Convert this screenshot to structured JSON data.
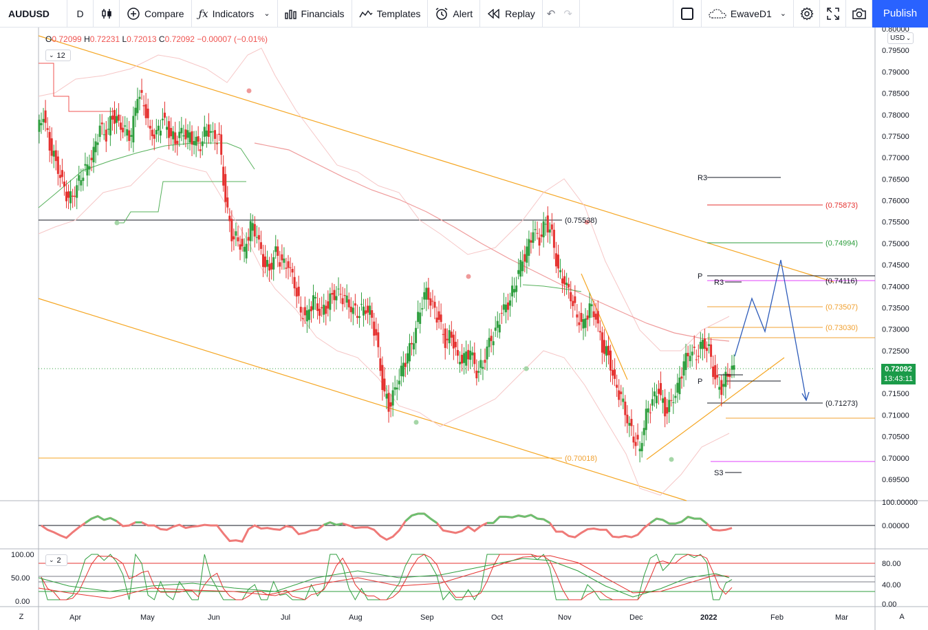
{
  "toolbar": {
    "symbol": "AUDUSD",
    "timeframe": "D",
    "compare": "Compare",
    "indicators": "Indicators",
    "financials": "Financials",
    "templates": "Templates",
    "alert": "Alert",
    "replay": "Replay",
    "layout_name": "EwaveD1",
    "publish": "Publish",
    "icons": {
      "bar_type": "candles-icon",
      "compare": "plus-circle-icon",
      "indicators": "fx-icon",
      "financials": "bars-icon",
      "templates": "templates-icon",
      "alert": "alarm-clock-icon",
      "replay": "rewind-icon",
      "undo": "undo-icon",
      "redo": "redo-icon",
      "layout": "square-icon",
      "cloud": "cloud-icon",
      "settings": "gear-icon",
      "fullscreen": "fullscreen-icon",
      "snapshot": "camera-icon"
    }
  },
  "legend": {
    "o_label": "O",
    "o": "0.72099",
    "h_label": "H",
    "h": "0.72231",
    "l_label": "L",
    "l": "0.72013",
    "c_label": "C",
    "c": "0.72092",
    "change": "−0.00007 (−0.01%)",
    "main_collapse_count": "12",
    "stoch_collapse_count": "2"
  },
  "price_axis": {
    "currency": "USD",
    "labels": [
      "0.80000",
      "0.79500",
      "0.79000",
      "0.78500",
      "0.78000",
      "0.77500",
      "0.77000",
      "0.76500",
      "0.76000",
      "0.75500",
      "0.75000",
      "0.74500",
      "0.74000",
      "0.73500",
      "0.73000",
      "0.72500",
      "0.72000",
      "0.71500",
      "0.71000",
      "0.70500",
      "0.70000",
      "0.69500"
    ],
    "last_price": "0.72092",
    "countdown": "13:43:11",
    "osc1_labels": [
      "100.00000",
      "0.00000"
    ],
    "osc2_labels": [
      "80.00",
      "40.00",
      "0.00"
    ],
    "osc2_left_labels": [
      "100.00",
      "50.00",
      "0.00"
    ]
  },
  "time_axis": {
    "labels": [
      "Apr",
      "May",
      "Jun",
      "Jul",
      "Aug",
      "Sep",
      "Oct",
      "Nov",
      "Dec",
      "2022",
      "Feb",
      "Mar"
    ]
  },
  "annotations": {
    "level_75538": "(0.75538)",
    "level_70018": "(0.70018)",
    "fib_75873": "(0.75873)",
    "fib_74994": "(0.74994)",
    "fib_74116": "(0.74116)",
    "fib_73507": "(0.73507)",
    "fib_73030": "(0.73030)",
    "fib_71273": "(0.71273)",
    "r3_upper": "R3",
    "p_upper": "P",
    "r3_lower": "R3",
    "p_lower": "P",
    "s3": "S3"
  },
  "colors": {
    "up": "#2e9e3e",
    "down": "#e5312f",
    "accent": "#2962ff",
    "fib_orange": "#f0a030",
    "trend_orange": "#f5a623",
    "projection_blue": "#2d5bb9"
  },
  "buttons": {
    "z": "Z",
    "a": "A"
  },
  "chart_data": {
    "type": "candlestick",
    "symbol": "AUDUSD",
    "interval": "D",
    "ylim": [
      0.69,
      0.8
    ],
    "x_range": [
      "2021-03",
      "2022-03"
    ],
    "last": 0.72092,
    "closes_approx": [
      0.78,
      0.773,
      0.769,
      0.764,
      0.76,
      0.762,
      0.766,
      0.768,
      0.771,
      0.777,
      0.775,
      0.78,
      0.778,
      0.776,
      0.775,
      0.785,
      0.783,
      0.776,
      0.775,
      0.779,
      0.776,
      0.774,
      0.776,
      0.775,
      0.774,
      0.773,
      0.777,
      0.775,
      0.774,
      0.76,
      0.752,
      0.751,
      0.748,
      0.754,
      0.752,
      0.746,
      0.744,
      0.748,
      0.745,
      0.745,
      0.741,
      0.734,
      0.733,
      0.737,
      0.734,
      0.735,
      0.738,
      0.738,
      0.737,
      0.735,
      0.734,
      0.735,
      0.734,
      0.728,
      0.717,
      0.712,
      0.716,
      0.72,
      0.724,
      0.728,
      0.735,
      0.739,
      0.735,
      0.732,
      0.727,
      0.729,
      0.723,
      0.723,
      0.725,
      0.72,
      0.722,
      0.727,
      0.729,
      0.734,
      0.736,
      0.74,
      0.745,
      0.748,
      0.753,
      0.751,
      0.755,
      0.752,
      0.743,
      0.741,
      0.738,
      0.733,
      0.731,
      0.735,
      0.733,
      0.726,
      0.724,
      0.717,
      0.714,
      0.709,
      0.705,
      0.702,
      0.71,
      0.713,
      0.716,
      0.711,
      0.713,
      0.716,
      0.722,
      0.725,
      0.724,
      0.727,
      0.725,
      0.718,
      0.716,
      0.72,
      0.7209
    ]
  }
}
